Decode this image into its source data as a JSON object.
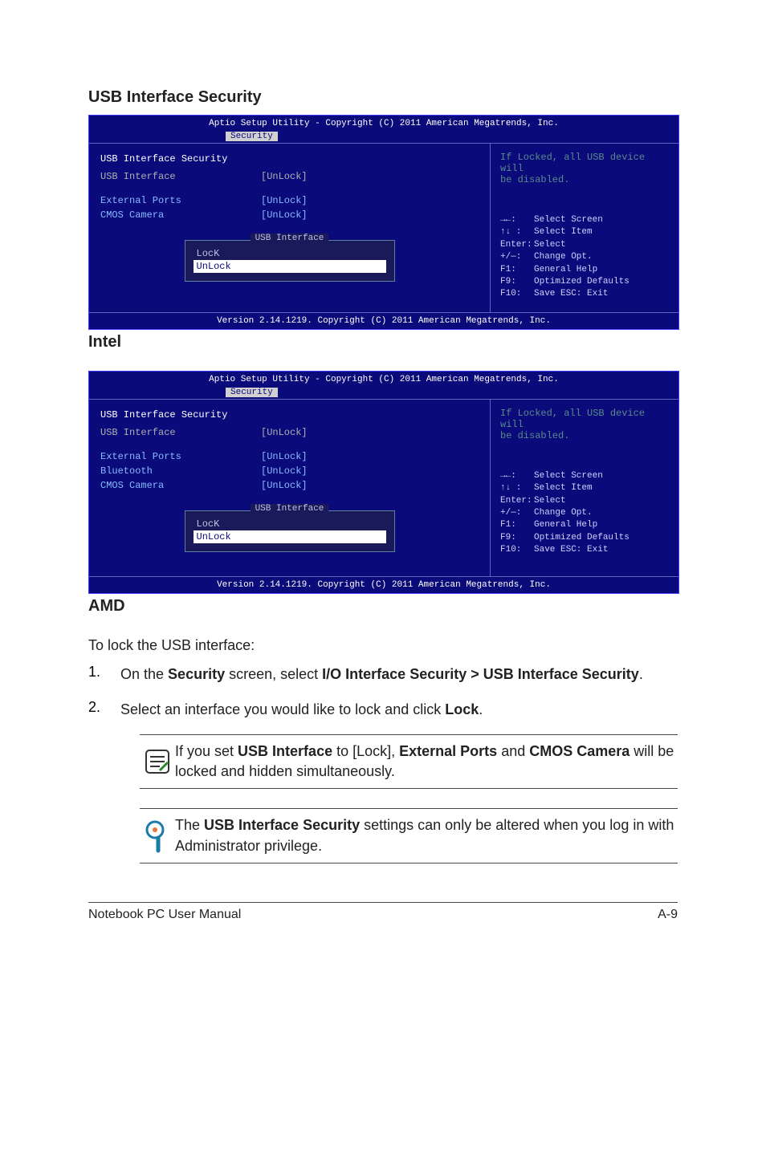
{
  "page": {
    "section_title": "USB Interface Security",
    "label_intel": "Intel",
    "label_amd": "AMD",
    "lock_intro": "To lock the USB interface:",
    "step1": "On the <b>Security</b> screen, select <b>I/O Interface Security > USB Interface Security</b>.",
    "step2": "Select an interface you would like to lock and click <b>Lock</b>.",
    "note1": "If you set <b>USB Interface</b> to [Lock], <b>External Ports</b> and <b>CMOS Camera</b> will be locked and hidden simultaneously.",
    "note2": "The <b>USB Interface Security</b> settings can only be altered when you log in with Administrator privilege.",
    "footer_left": "Notebook PC User Manual",
    "footer_right": "A-9"
  },
  "bios_intel": {
    "header": "Aptio Setup Utility - Copyright (C) 2011 American Megatrends, Inc.",
    "tab": "Security",
    "title": "USB Interface Security",
    "rows": [
      {
        "label": "USB Interface",
        "value": "[UnLock]",
        "label_color": "gray",
        "value_color": "gray"
      },
      {
        "label": "External Ports",
        "value": "[UnLock]",
        "label_color": "blue",
        "value_color": "blue"
      },
      {
        "label": "CMOS Camera",
        "value": "[UnLock]",
        "label_color": "blue",
        "value_color": "blue"
      }
    ],
    "popup_title": "USB Interface",
    "popup_items": [
      {
        "text": "LocK",
        "selected": false
      },
      {
        "text": "UnLock",
        "selected": true
      }
    ],
    "right_top1": "If Locked, all USB device will",
    "right_top2": "be disabled.",
    "help": {
      "l1k": "→←:",
      "l1v": "Select Screen",
      "l2k": "↑↓ :",
      "l2v": "Select Item",
      "l3k": "Enter:",
      "l3v": "Select",
      "l4k": "+/—:",
      "l4v": "Change Opt.",
      "l5k": "F1:",
      "l5v": "General Help",
      "l6k": "F9:",
      "l6v": "Optimized Defaults",
      "l7k": "F10:",
      "l7v": "Save   ESC: Exit"
    },
    "footer": "Version 2.14.1219. Copyright (C) 2011 American Megatrends, Inc."
  },
  "bios_amd": {
    "header": "Aptio Setup Utility - Copyright (C) 2011 American Megatrends, Inc.",
    "tab": "Security",
    "title": "USB Interface Security",
    "rows": [
      {
        "label": "USB Interface",
        "value": "[UnLock]",
        "label_color": "gray",
        "value_color": "gray"
      },
      {
        "label": "External Ports",
        "value": "[UnLock]",
        "label_color": "blue",
        "value_color": "blue"
      },
      {
        "label": "Bluetooth",
        "value": "[UnLock]",
        "label_color": "blue",
        "value_color": "blue"
      },
      {
        "label": "CMOS Camera",
        "value": "[UnLock]",
        "label_color": "blue",
        "value_color": "blue"
      }
    ],
    "popup_title": "USB Interface",
    "popup_items": [
      {
        "text": "LocK",
        "selected": false
      },
      {
        "text": "UnLock",
        "selected": true
      }
    ],
    "right_top1": "If Locked, all USB device will",
    "right_top2": "be disabled.",
    "help": {
      "l1k": "→←:",
      "l1v": "Select Screen",
      "l2k": "↑↓ :",
      "l2v": "Select Item",
      "l3k": "Enter:",
      "l3v": "Select",
      "l4k": "+/—:",
      "l4v": "Change Opt.",
      "l5k": "F1:",
      "l5v": "General Help",
      "l6k": "F9:",
      "l6v": "Optimized Defaults",
      "l7k": "F10:",
      "l7v": "Save   ESC: Exit"
    },
    "footer": "Version 2.14.1219. Copyright (C) 2011 American Megatrends, Inc."
  }
}
